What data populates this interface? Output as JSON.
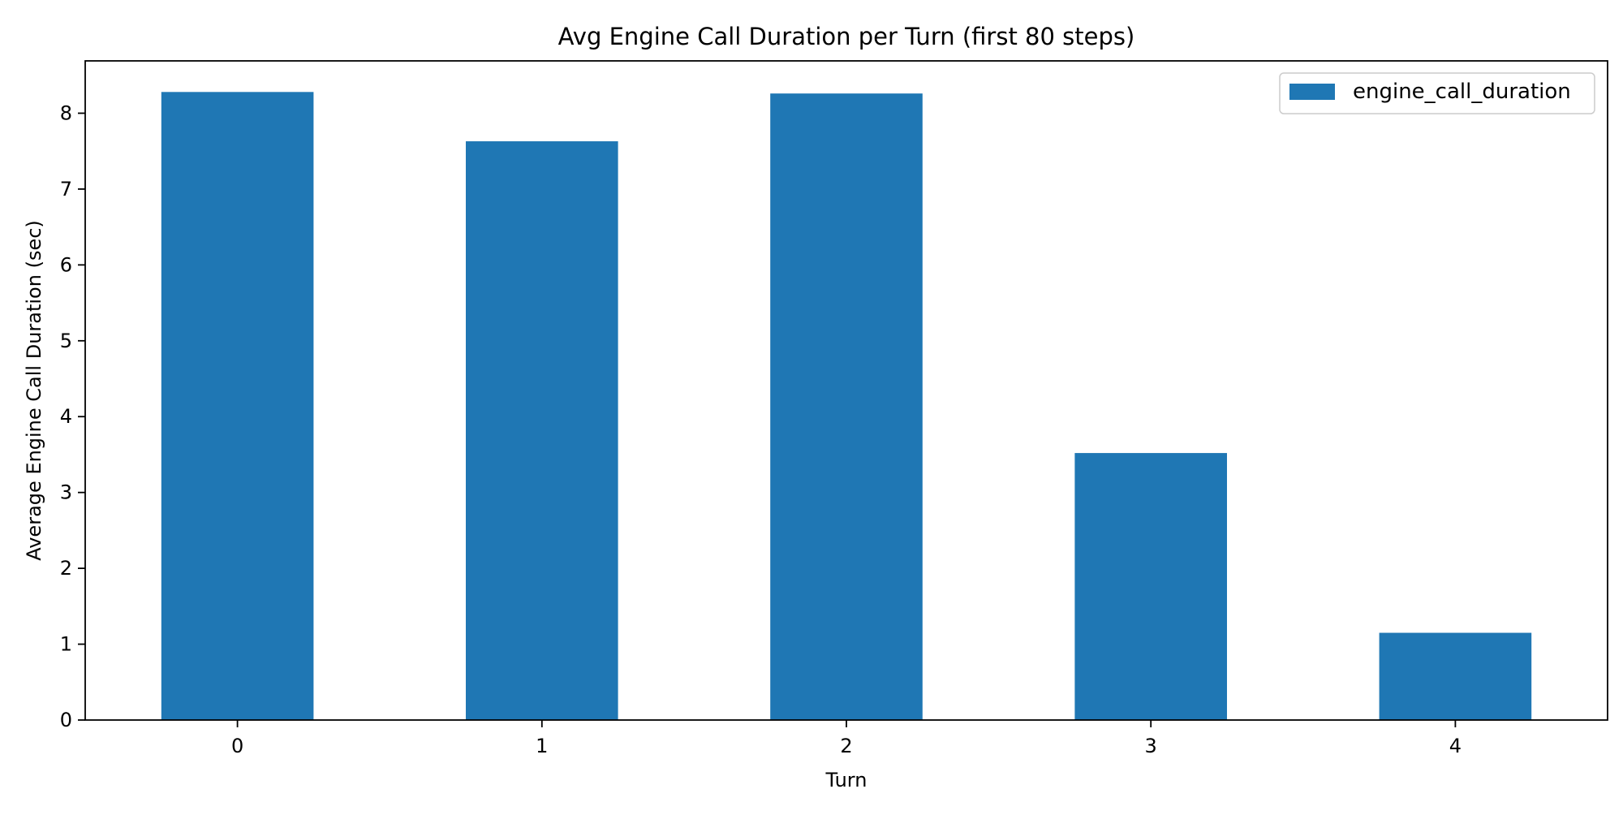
{
  "chart_data": {
    "type": "bar",
    "title": "Avg Engine Call Duration per Turn (first 80 steps)",
    "xlabel": "Turn",
    "ylabel": "Average Engine Call Duration (sec)",
    "categories": [
      "0",
      "1",
      "2",
      "3",
      "4"
    ],
    "series": [
      {
        "name": "engine_call_duration",
        "values": [
          8.28,
          7.63,
          8.26,
          3.52,
          1.15
        ],
        "color": "#1f77b4"
      }
    ],
    "ylim": [
      0,
      8.69
    ],
    "yticks": [
      "0",
      "1",
      "2",
      "3",
      "4",
      "5",
      "6",
      "7",
      "8"
    ],
    "grid": false,
    "legend": "top-right"
  }
}
